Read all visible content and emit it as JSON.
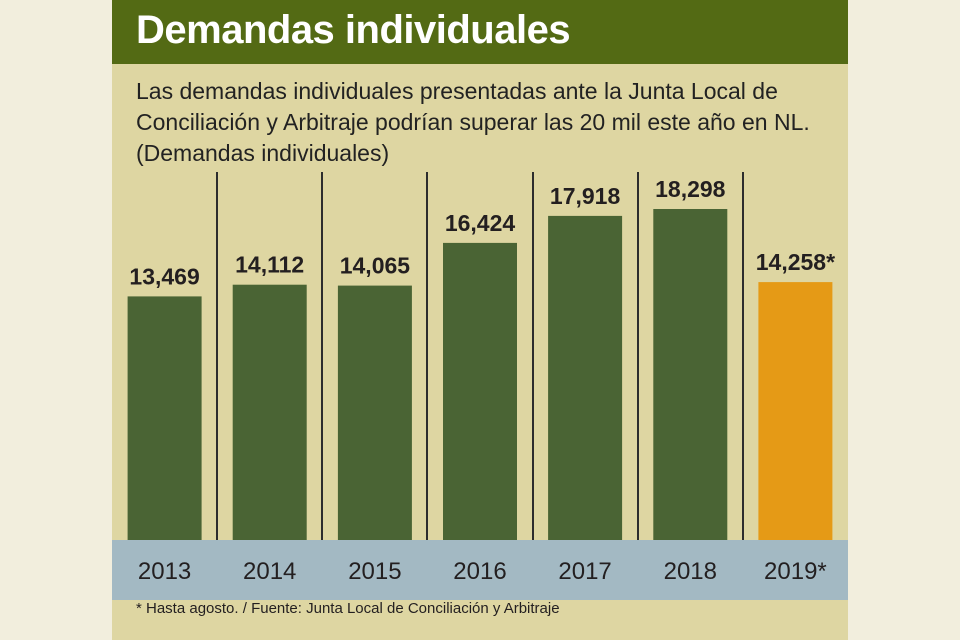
{
  "header": {
    "title": "Demandas individuales",
    "subtitle": "Las demandas individuales presentadas ante la Junta Local de Conciliación y Arbitraje podrían superar las 20 mil este año en NL. (Demandas individuales)"
  },
  "footnote": "* Hasta agosto. / Fuente: Junta Local de Conciliación y Arbitraje",
  "colors": {
    "title_bg": "#536a14",
    "panel_bg": "#ded6a2",
    "bar": "#4a6434",
    "bar_highlight": "#e59a16",
    "axis_band": "#a3b9c3",
    "divider": "#2d2d2d"
  },
  "chart_data": {
    "type": "bar",
    "title": "Demandas individuales",
    "xlabel": "",
    "ylabel": "Demandas individuales",
    "ylim": [
      0,
      18298
    ],
    "categories": [
      "2013",
      "2014",
      "2015",
      "2016",
      "2017",
      "2018",
      "2019*"
    ],
    "values": [
      13469,
      14112,
      14065,
      16424,
      17918,
      18298,
      14258
    ],
    "data_labels": [
      "13,469",
      "14,112",
      "14,065",
      "16,424",
      "17,918",
      "18,298",
      "14,258*"
    ],
    "highlight": [
      "2019*"
    ],
    "annotations": [
      "* Hasta agosto."
    ]
  }
}
